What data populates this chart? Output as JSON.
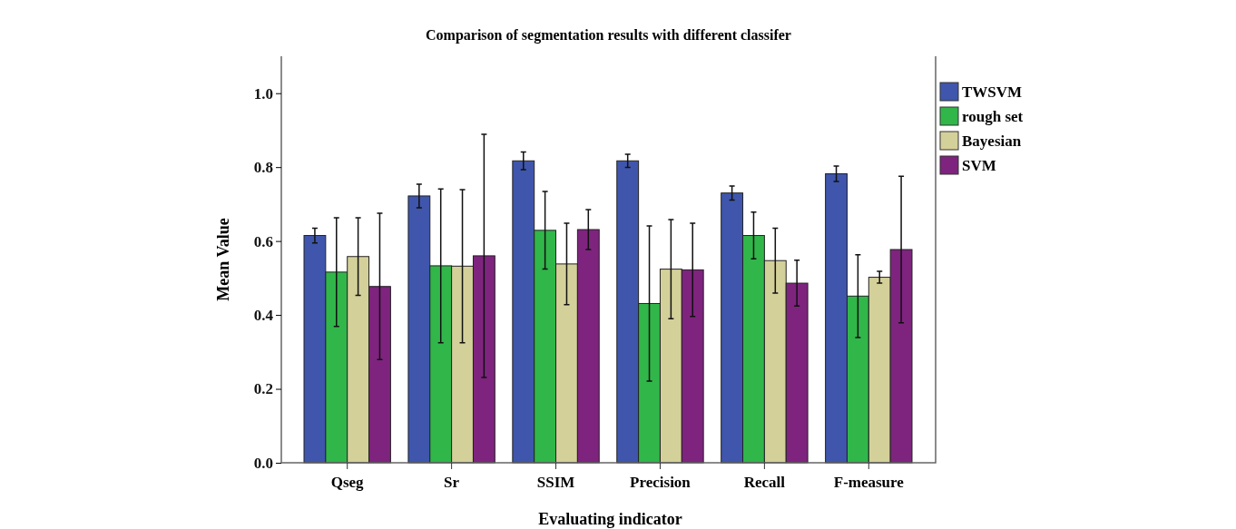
{
  "chart_data": {
    "type": "bar",
    "title": "Comparison of segmentation results with different classifer",
    "xlabel": "Evaluating indicator",
    "ylabel": "Mean Value",
    "categories": [
      "Qseg",
      "Sr",
      "SSIM",
      "Precision",
      "Recall",
      "F-measure"
    ],
    "series": [
      {
        "name": "TWSVM",
        "color": "#3f56ac",
        "values": [
          0.615,
          0.722,
          0.817,
          0.817,
          0.73,
          0.782
        ],
        "errors": [
          0.02,
          0.032,
          0.024,
          0.018,
          0.019,
          0.021
        ]
      },
      {
        "name": "rough set",
        "color": "#31b64a",
        "values": [
          0.516,
          0.533,
          0.629,
          0.431,
          0.615,
          0.451
        ],
        "errors": [
          0.147,
          0.208,
          0.105,
          0.21,
          0.063,
          0.112
        ]
      },
      {
        "name": "Bayesian",
        "color": "#d4d09a",
        "values": [
          0.558,
          0.532,
          0.538,
          0.524,
          0.547,
          0.502
        ],
        "errors": [
          0.105,
          0.207,
          0.11,
          0.134,
          0.088,
          0.016
        ]
      },
      {
        "name": "SVM",
        "color": "#7e247e",
        "values": [
          0.477,
          0.56,
          0.631,
          0.522,
          0.486,
          0.577
        ],
        "errors": [
          0.198,
          0.329,
          0.054,
          0.126,
          0.062,
          0.198
        ]
      }
    ],
    "ylim": [
      0,
      1.1
    ],
    "yticks": [
      {
        "value": 0,
        "label": "0.0"
      },
      {
        "value": 0.2,
        "label": "0.2"
      },
      {
        "value": 0.4,
        "label": "0.4"
      },
      {
        "value": 0.6,
        "label": "0.6"
      },
      {
        "value": 0.8,
        "label": "0.8"
      },
      {
        "value": 1,
        "label": "1.0"
      }
    ],
    "legend": "right",
    "grid": false
  }
}
